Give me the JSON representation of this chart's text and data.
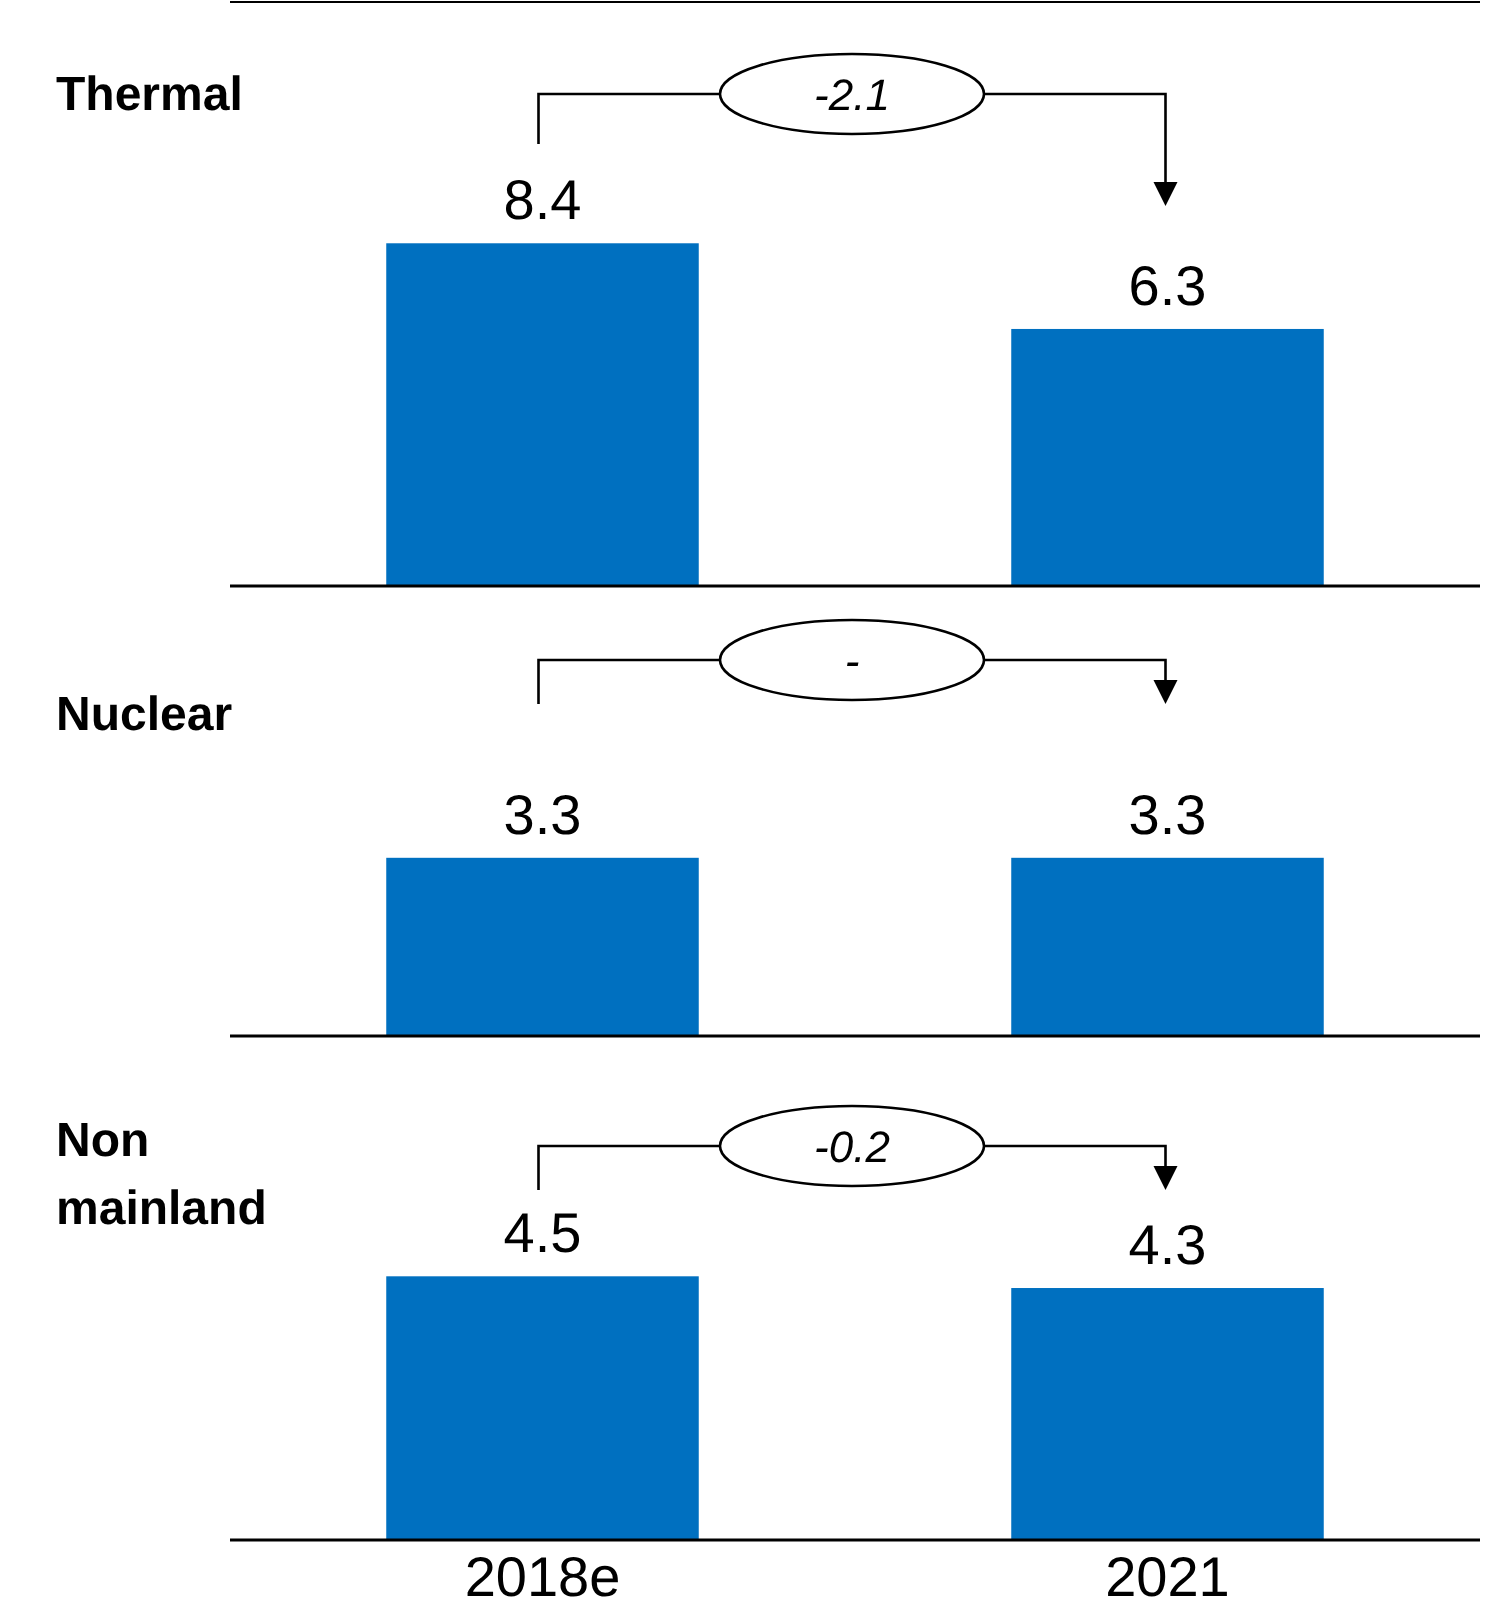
{
  "chart_data": [
    {
      "type": "bar",
      "title": "Thermal",
      "categories": [
        null,
        null
      ],
      "values": [
        8.4,
        6.3
      ],
      "color": "#0070c0",
      "data_labels": true,
      "tick_labels": false,
      "annotations": [
        "-2.1"
      ]
    },
    {
      "type": "bar",
      "title": "Nuclear",
      "categories": [
        null,
        null
      ],
      "values": [
        3.3,
        3.3
      ],
      "color": "#0070c0",
      "data_labels": true,
      "tick_labels": false,
      "annotations": [
        "-"
      ]
    },
    {
      "type": "bar",
      "title": "Non mainland",
      "categories": [
        "2018e",
        "2021"
      ],
      "values": [
        4.5,
        4.3
      ],
      "color": "#0070c0",
      "data_labels": true,
      "tick_labels": "x",
      "annotations": [
        "-0.2"
      ]
    }
  ]
}
